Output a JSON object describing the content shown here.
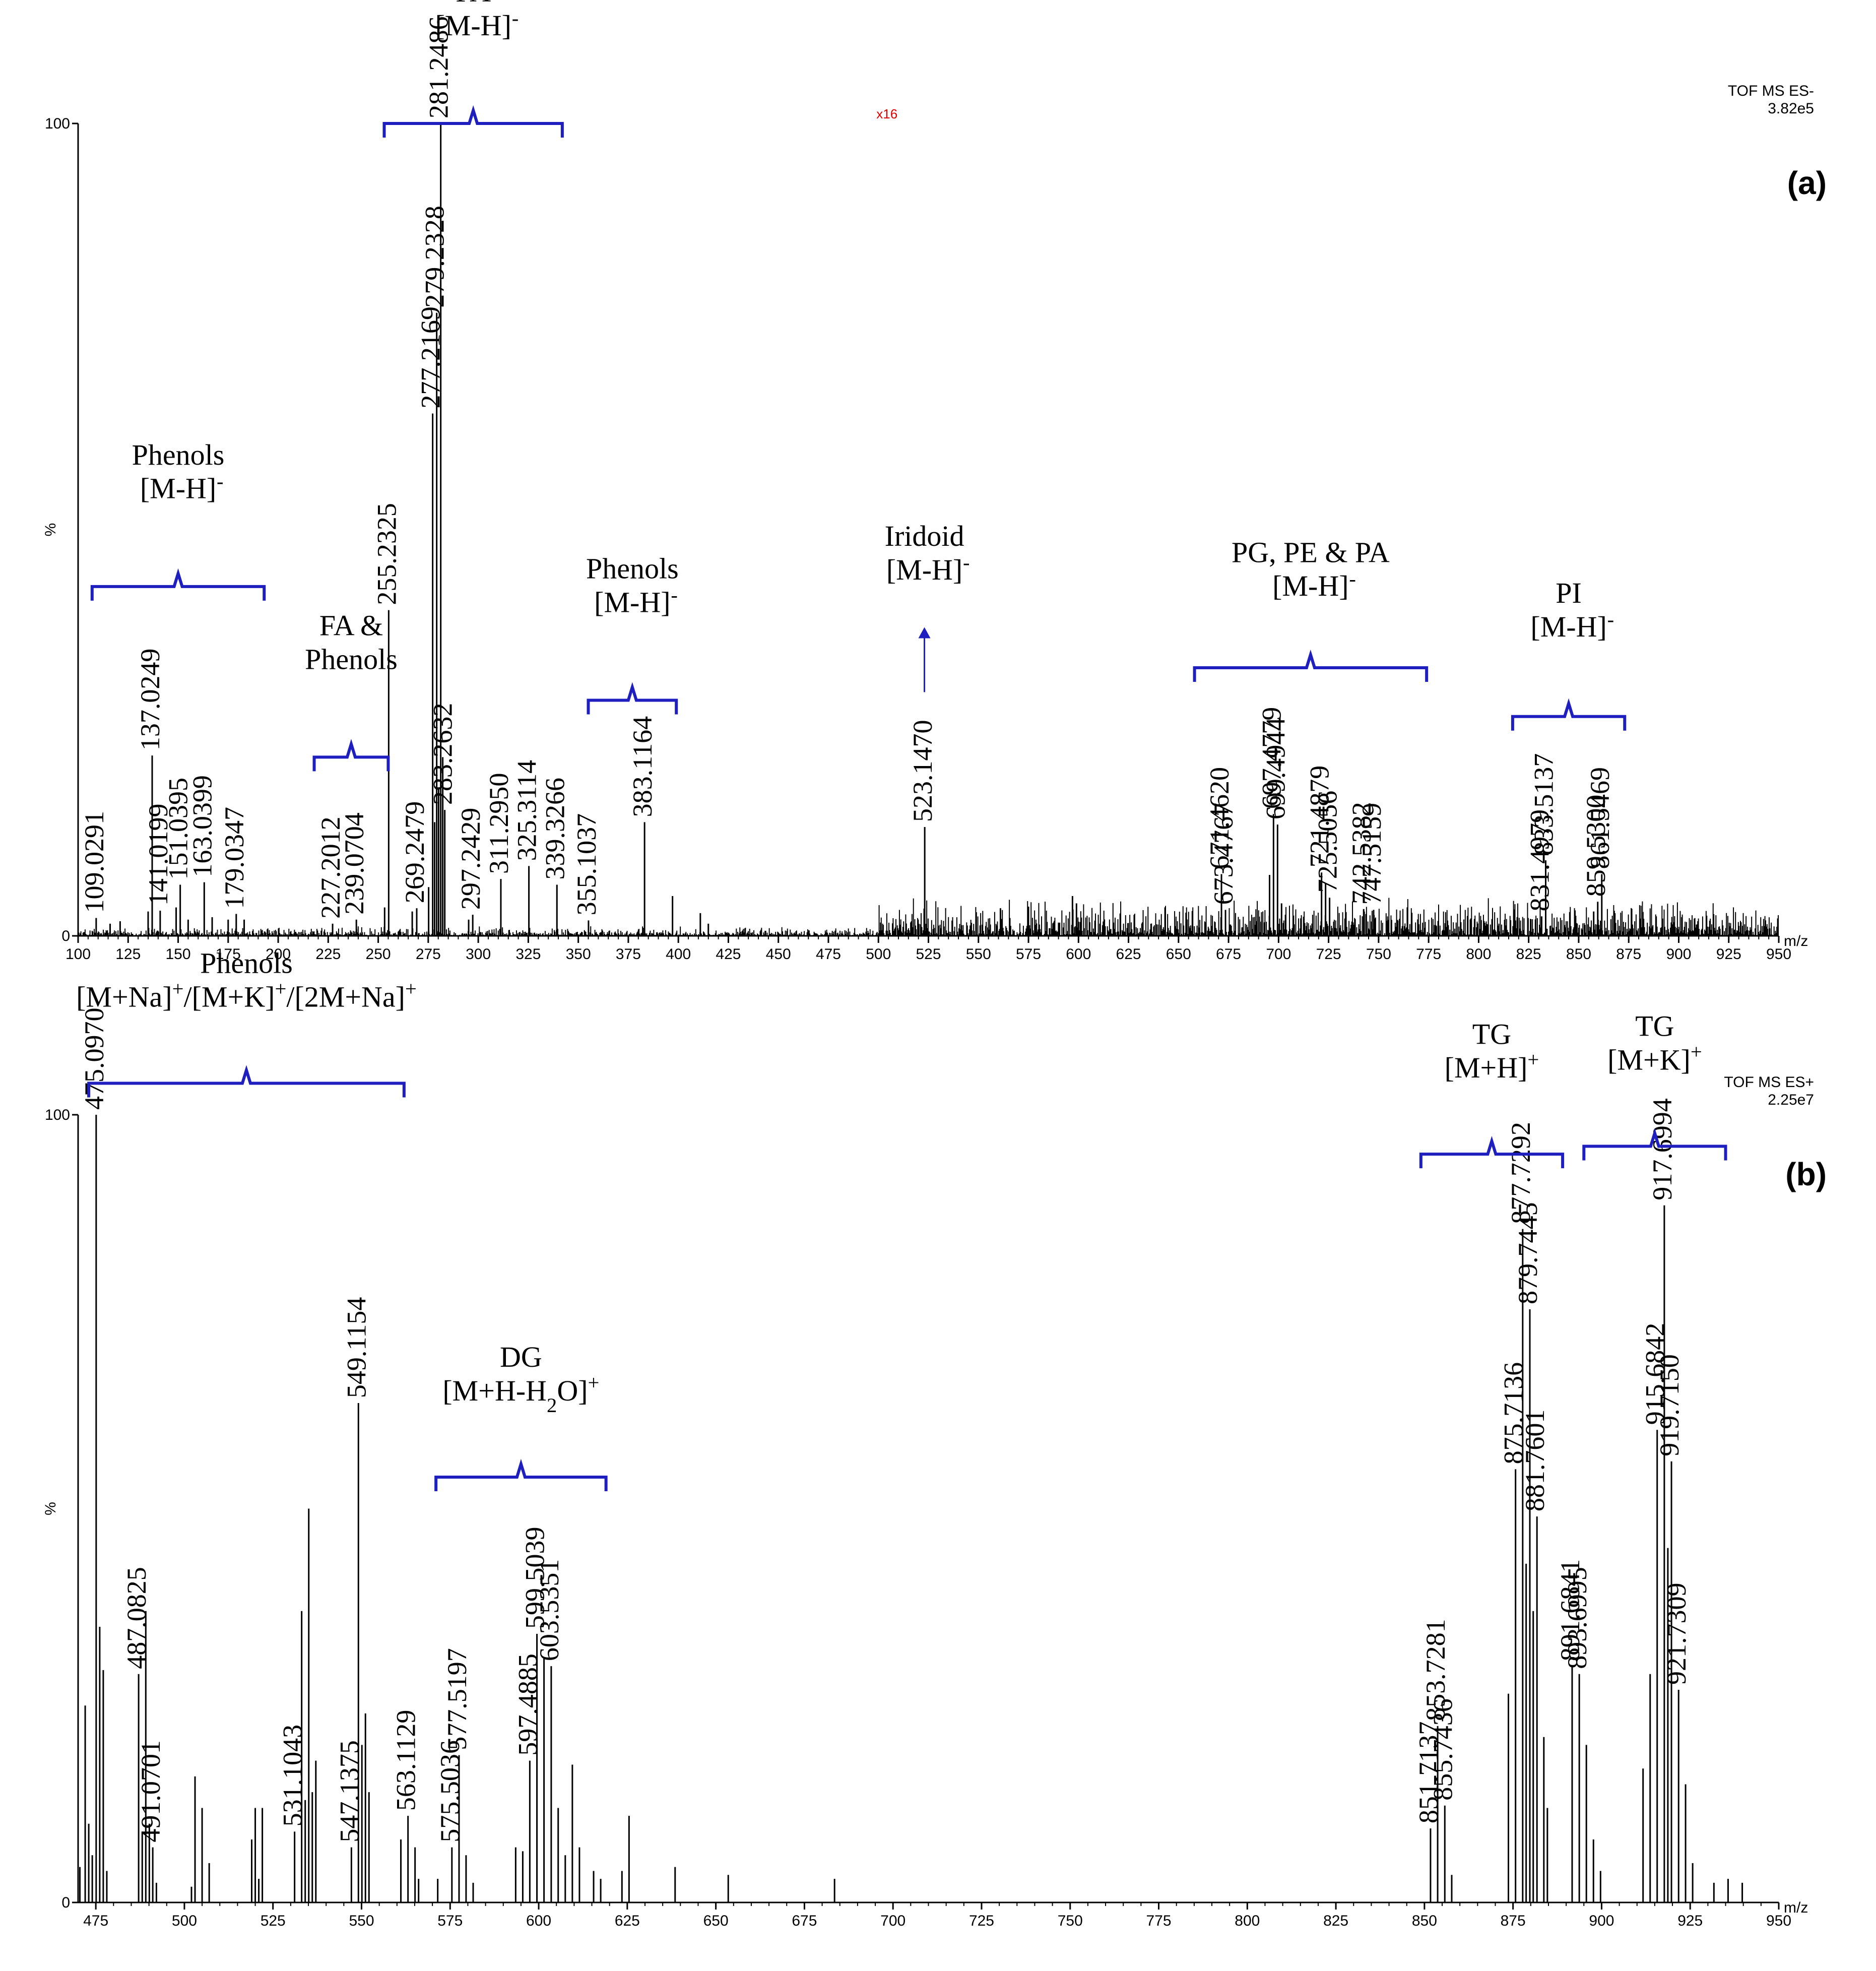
{
  "colors": {
    "axis": "#000000",
    "bracket": "#1f1fbf",
    "marker": "#e00000"
  },
  "chart_data": [
    {
      "id": "a",
      "type": "bar",
      "panel_label": "(a)",
      "instrument": "TOF MS ES-",
      "intensity": "3.82e5",
      "xlabel": "m/z",
      "ylabel": "%",
      "xlim": [
        100,
        950
      ],
      "ylim": [
        0,
        100
      ],
      "y_ticks": [
        "100",
        "0"
      ],
      "x_ticks": [
        100,
        125,
        150,
        175,
        200,
        225,
        250,
        275,
        300,
        325,
        350,
        375,
        400,
        425,
        450,
        475,
        500,
        525,
        550,
        575,
        600,
        625,
        650,
        675,
        700,
        725,
        750,
        775,
        800,
        825,
        850,
        875,
        900,
        925,
        950
      ],
      "marker": {
        "mz": 500,
        "text": "x16"
      },
      "noise_regions": [
        {
          "from": 100,
          "to": 500,
          "max": 1.2
        },
        {
          "from": 500,
          "to": 950,
          "max": 5
        }
      ],
      "peaks": [
        {
          "mz": 109.0291,
          "int": 2.2,
          "label": "109.0291"
        },
        {
          "mz": 116.0,
          "int": 1.5
        },
        {
          "mz": 121.0,
          "int": 1.8
        },
        {
          "mz": 135.0,
          "int": 3.0
        },
        {
          "mz": 137.0249,
          "int": 22.2,
          "label": "137.0249"
        },
        {
          "mz": 141.0199,
          "int": 3.1,
          "label": "141.0199"
        },
        {
          "mz": 149.0,
          "int": 3.5
        },
        {
          "mz": 151.0395,
          "int": 6.3,
          "label": "151.0395"
        },
        {
          "mz": 155.0,
          "int": 2.0
        },
        {
          "mz": 163.0399,
          "int": 6.6,
          "label": "163.0399"
        },
        {
          "mz": 167.0,
          "int": 2.3
        },
        {
          "mz": 175.0,
          "int": 2.0
        },
        {
          "mz": 179.0347,
          "int": 2.7,
          "label": "179.0347"
        },
        {
          "mz": 183.0,
          "int": 2.0
        },
        {
          "mz": 227.2012,
          "int": 1.5,
          "label": "227.2012"
        },
        {
          "mz": 239.0704,
          "int": 2.0,
          "label": "239.0704"
        },
        {
          "mz": 253.2,
          "int": 3.5
        },
        {
          "mz": 255.2325,
          "int": 40.1,
          "label": "255.2325"
        },
        {
          "mz": 267.0,
          "int": 3.0
        },
        {
          "mz": 269.2479,
          "int": 3.4,
          "label": "269.2479"
        },
        {
          "mz": 275.2,
          "int": 6.0
        },
        {
          "mz": 277.2169,
          "int": 64.3,
          "label": "277.2169"
        },
        {
          "mz": 278.2,
          "int": 14.0
        },
        {
          "mz": 279.2328,
          "int": 76.7,
          "label": "279.2328"
        },
        {
          "mz": 280.2,
          "int": 18.0
        },
        {
          "mz": 281.2486,
          "int": 100,
          "label": "281.2486"
        },
        {
          "mz": 282.25,
          "int": 22.0
        },
        {
          "mz": 283.2632,
          "int": 15.5,
          "label": "283.2632"
        },
        {
          "mz": 295.2,
          "int": 2.0
        },
        {
          "mz": 297.2429,
          "int": 2.6,
          "label": "297.2429"
        },
        {
          "mz": 311.295,
          "int": 7.0,
          "label": "311.2950"
        },
        {
          "mz": 325.3114,
          "int": 8.6,
          "label": "325.3114"
        },
        {
          "mz": 339.3266,
          "int": 6.3,
          "label": "339.3266"
        },
        {
          "mz": 355.1037,
          "int": 1.9,
          "label": "355.1037"
        },
        {
          "mz": 383.1164,
          "int": 14.0,
          "label": "383.1164"
        },
        {
          "mz": 397.1,
          "int": 4.9
        },
        {
          "mz": 411.0,
          "int": 2.8
        },
        {
          "mz": 415.0,
          "int": 1.5
        },
        {
          "mz": 523.147,
          "int": 13.4,
          "label": "523.1470"
        },
        {
          "mz": 561.0,
          "int": 3.4
        },
        {
          "mz": 575.0,
          "int": 3.6
        },
        {
          "mz": 597.0,
          "int": 4.9
        },
        {
          "mz": 599.0,
          "int": 4.0
        },
        {
          "mz": 671.462,
          "int": 7.6,
          "label": "671.4620"
        },
        {
          "mz": 673.4767,
          "int": 3.2,
          "label": "673.4767"
        },
        {
          "mz": 695.5,
          "int": 7.5
        },
        {
          "mz": 697.4779,
          "int": 15.0,
          "label": "697.4779"
        },
        {
          "mz": 699.4944,
          "int": 13.7,
          "label": "699.4944"
        },
        {
          "mz": 701.5,
          "int": 4.0
        },
        {
          "mz": 721.4879,
          "int": 7.8,
          "label": "721.4879"
        },
        {
          "mz": 723.5,
          "int": 6.5
        },
        {
          "mz": 725.5056,
          "int": 4.7,
          "label": "725.5056"
        },
        {
          "mz": 742.5382,
          "int": 3.3,
          "label": "742.5382"
        },
        {
          "mz": 747.5159,
          "int": 3.2,
          "label": "747.5159"
        },
        {
          "mz": 831.4979,
          "int": 2.4,
          "label": "831.4979"
        },
        {
          "mz": 833.5137,
          "int": 9.3,
          "label": "833.5137"
        },
        {
          "mz": 857.5,
          "int": 3.0
        },
        {
          "mz": 859.53,
          "int": 4.2,
          "label": "859.5300"
        },
        {
          "mz": 861.5469,
          "int": 7.6,
          "label": "861.5469"
        }
      ],
      "annotations": [
        {
          "id": "phenols-1",
          "lines": [
            "Phenols",
            "[M-H]"
          ],
          "sup": "-",
          "bracket": [
            107,
            193
          ],
          "level": 43,
          "text_top": 58
        },
        {
          "id": "fa-phenols",
          "lines": [
            "FA &",
            "Phenols"
          ],
          "sup": "",
          "bracket": [
            218,
            255
          ],
          "level": 22,
          "text_top": 37
        },
        {
          "id": "fa",
          "lines": [
            "FA",
            "[M-H]"
          ],
          "sup": "-",
          "bracket": [
            253,
            342
          ],
          "level": 100,
          "text_top": 115
        },
        {
          "id": "phenols-2",
          "lines": [
            "Phenols",
            "[M-H]"
          ],
          "sup": "-",
          "bracket": [
            355,
            399
          ],
          "level": 29,
          "text_top": 44
        },
        {
          "id": "pg-pe-pa",
          "lines": [
            "PG, PE & PA",
            "[M-H]"
          ],
          "sup": "-",
          "bracket": [
            658,
            774
          ],
          "level": 33,
          "text_top": 46
        },
        {
          "id": "pi",
          "lines": [
            "PI",
            "[M-H]"
          ],
          "sup": "-",
          "bracket": [
            817,
            873
          ],
          "level": 27,
          "text_top": 41
        }
      ],
      "arrow_annotation": {
        "lines": [
          "Iridoid",
          "[M-H]"
        ],
        "sup": "-",
        "mz": 523,
        "from": 30,
        "to": 38,
        "text_top": 48
      }
    },
    {
      "id": "b",
      "type": "bar",
      "panel_label": "(b)",
      "instrument": "TOF MS ES+",
      "intensity": "2.25e7",
      "xlabel": "m/z",
      "ylabel": "%",
      "xlim": [
        470,
        950
      ],
      "ylim": [
        0,
        100
      ],
      "y_ticks": [
        "100",
        "0"
      ],
      "x_ticks": [
        475,
        500,
        525,
        550,
        575,
        600,
        625,
        650,
        675,
        700,
        725,
        750,
        775,
        800,
        825,
        850,
        875,
        900,
        925,
        950
      ],
      "noise_regions": [],
      "peaks": [
        {
          "mz": 470.5,
          "int": 4.5
        },
        {
          "mz": 472.0,
          "int": 25.0
        },
        {
          "mz": 473.0,
          "int": 10.0
        },
        {
          "mz": 474.0,
          "int": 6.0
        },
        {
          "mz": 475.097,
          "int": 100,
          "label": "475.0970"
        },
        {
          "mz": 476.1,
          "int": 35.0
        },
        {
          "mz": 477.1,
          "int": 29.5
        },
        {
          "mz": 478.1,
          "int": 4.0
        },
        {
          "mz": 487.0825,
          "int": 29.0,
          "label": "487.0825"
        },
        {
          "mz": 488.1,
          "int": 9.0
        },
        {
          "mz": 489.1,
          "int": 37.0
        },
        {
          "mz": 490.1,
          "int": 10.0
        },
        {
          "mz": 491.0701,
          "int": 7.0,
          "label": "491.0701"
        },
        {
          "mz": 492.1,
          "int": 2.5
        },
        {
          "mz": 502.0,
          "int": 2.0
        },
        {
          "mz": 503.0,
          "int": 16.0
        },
        {
          "mz": 505.0,
          "int": 12.0
        },
        {
          "mz": 507.0,
          "int": 5.0
        },
        {
          "mz": 519.0,
          "int": 8.0
        },
        {
          "mz": 520.0,
          "int": 12.0
        },
        {
          "mz": 521.0,
          "int": 3.0
        },
        {
          "mz": 522.0,
          "int": 12.0
        },
        {
          "mz": 531.1043,
          "int": 9.0,
          "label": "531.1043"
        },
        {
          "mz": 533.1,
          "int": 37.0
        },
        {
          "mz": 534.1,
          "int": 13.0
        },
        {
          "mz": 535.1,
          "int": 50.0
        },
        {
          "mz": 536.1,
          "int": 14.0
        },
        {
          "mz": 537.1,
          "int": 18.0
        },
        {
          "mz": 547.1375,
          "int": 7.0,
          "label": "547.1375"
        },
        {
          "mz": 549.1154,
          "int": 63.4,
          "label": "549.1154"
        },
        {
          "mz": 550.1,
          "int": 20.0
        },
        {
          "mz": 551.1,
          "int": 24.0
        },
        {
          "mz": 552.1,
          "int": 14.0
        },
        {
          "mz": 561.1,
          "int": 8.0
        },
        {
          "mz": 563.1129,
          "int": 11.0,
          "label": "563.1129"
        },
        {
          "mz": 565.1,
          "int": 7.0
        },
        {
          "mz": 566.1,
          "int": 3.0
        },
        {
          "mz": 571.5,
          "int": 3.0
        },
        {
          "mz": 575.5036,
          "int": 7.0,
          "label": "575.5036"
        },
        {
          "mz": 577.5197,
          "int": 18.7,
          "label": "577.5197"
        },
        {
          "mz": 579.5,
          "int": 6.0
        },
        {
          "mz": 581.5,
          "int": 2.5
        },
        {
          "mz": 593.5,
          "int": 7.0
        },
        {
          "mz": 595.5,
          "int": 6.5
        },
        {
          "mz": 597.4885,
          "int": 18.0,
          "label": "597.4885"
        },
        {
          "mz": 599.5039,
          "int": 34.1,
          "label": "599.5039"
        },
        {
          "mz": 601.5,
          "int": 31.0
        },
        {
          "mz": 603.5351,
          "int": 30.0,
          "label": "603.5351"
        },
        {
          "mz": 605.5,
          "int": 12.0
        },
        {
          "mz": 607.5,
          "int": 6.0
        },
        {
          "mz": 609.5,
          "int": 17.5
        },
        {
          "mz": 611.5,
          "int": 7.0
        },
        {
          "mz": 615.5,
          "int": 4.0
        },
        {
          "mz": 617.5,
          "int": 3.0
        },
        {
          "mz": 623.5,
          "int": 4.0
        },
        {
          "mz": 625.5,
          "int": 11.0
        },
        {
          "mz": 638.5,
          "int": 4.5
        },
        {
          "mz": 653.5,
          "int": 3.5
        },
        {
          "mz": 683.5,
          "int": 3.0
        },
        {
          "mz": 851.7137,
          "int": 9.4,
          "label": "851.7137"
        },
        {
          "mz": 853.7281,
          "int": 22.4,
          "label": "853.7281"
        },
        {
          "mz": 855.7436,
          "int": 12.3,
          "label": "855.7436"
        },
        {
          "mz": 857.7,
          "int": 3.5
        },
        {
          "mz": 873.7,
          "int": 26.5
        },
        {
          "mz": 875.7136,
          "int": 55.0,
          "label": "875.7136"
        },
        {
          "mz": 877.7292,
          "int": 85.5,
          "label": "877.7292"
        },
        {
          "mz": 878.7,
          "int": 43.0
        },
        {
          "mz": 879.7445,
          "int": 75.3,
          "label": "879.7445"
        },
        {
          "mz": 880.7,
          "int": 37.0
        },
        {
          "mz": 881.7601,
          "int": 49.0,
          "label": "881.7601"
        },
        {
          "mz": 883.7,
          "int": 21.0
        },
        {
          "mz": 884.7,
          "int": 12.0
        },
        {
          "mz": 891.6841,
          "int": 30.0,
          "label": "891.6841"
        },
        {
          "mz": 893.6995,
          "int": 29.0,
          "label": "893.6995"
        },
        {
          "mz": 895.7,
          "int": 20.0
        },
        {
          "mz": 897.7,
          "int": 8.0
        },
        {
          "mz": 899.7,
          "int": 4.0
        },
        {
          "mz": 911.7,
          "int": 17.0
        },
        {
          "mz": 913.7,
          "int": 29.0
        },
        {
          "mz": 915.6842,
          "int": 60.0,
          "label": "915.6842"
        },
        {
          "mz": 917.6994,
          "int": 88.5,
          "label": "917.6994"
        },
        {
          "mz": 918.7,
          "int": 45.0
        },
        {
          "mz": 919.715,
          "int": 56.0,
          "label": "919.7150"
        },
        {
          "mz": 921.7309,
          "int": 27.0,
          "label": "921.7309"
        },
        {
          "mz": 923.7,
          "int": 15.0
        },
        {
          "mz": 925.7,
          "int": 5.0
        },
        {
          "mz": 931.7,
          "int": 2.5
        },
        {
          "mz": 935.7,
          "int": 3.0
        },
        {
          "mz": 939.7,
          "int": 2.5
        }
      ],
      "annotations": [
        {
          "id": "phenols-b",
          "lines": [
            "Phenols"
          ],
          "html_line": "[M+Na]<tspan baseline-shift='super' font-size='0.7em'>+</tspan>/[M+K]<tspan baseline-shift='super' font-size='0.7em'>+</tspan>/[2M+Na]<tspan baseline-shift='super' font-size='0.7em'>+</tspan>",
          "plain_line": "[M+Na]+/[M+K]+/[2M+Na]+",
          "bracket": [
            473,
            562
          ],
          "level": 104,
          "text_top": 118
        },
        {
          "id": "dg",
          "lines": [
            "DG"
          ],
          "html_line": "[M+H-H<tspan baseline-shift='sub' font-size='0.7em'>2</tspan>O]<tspan baseline-shift='super' font-size='0.7em'>+</tspan>",
          "plain_line": "[M+H-H2O]+",
          "bracket": [
            571,
            619
          ],
          "level": 54,
          "text_top": 68
        },
        {
          "id": "tg-h",
          "lines": [
            "TG"
          ],
          "html_line": "[M+H]<tspan baseline-shift='super' font-size='0.7em'>+</tspan>",
          "plain_line": "[M+H]+",
          "bracket": [
            849,
            889
          ],
          "level": 95,
          "text_top": 109
        },
        {
          "id": "tg-k",
          "lines": [
            "TG"
          ],
          "html_line": "[M+K]<tspan baseline-shift='super' font-size='0.7em'>+</tspan>",
          "plain_line": "[M+K]+",
          "bracket": [
            895,
            935
          ],
          "level": 96,
          "text_top": 110
        }
      ]
    }
  ]
}
